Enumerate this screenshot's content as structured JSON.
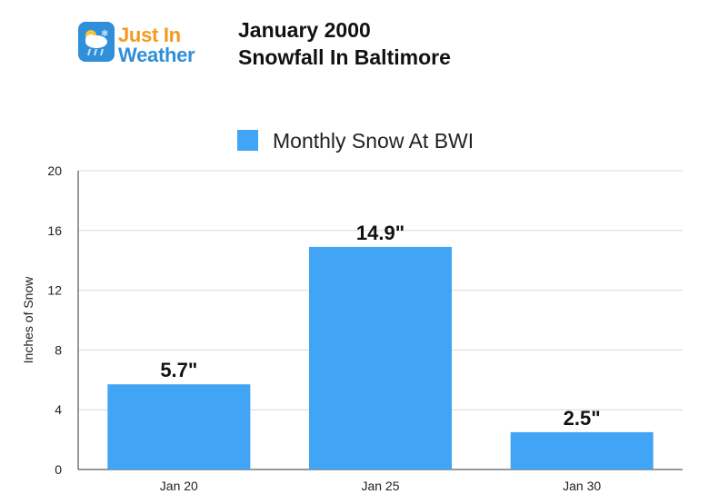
{
  "logo": {
    "line1": "Just In",
    "line2": "Weather"
  },
  "header": {
    "title_line1": "January 2000",
    "title_line2": "Snowfall In Baltimore"
  },
  "chart_data": {
    "type": "bar",
    "categories": [
      "Jan 20",
      "Jan 25",
      "Jan 30"
    ],
    "series": [
      {
        "name": "Monthly Snow At BWI",
        "values": [
          5.7,
          14.9,
          2.5
        ],
        "color": "#42a4f5"
      }
    ],
    "data_labels": [
      "5.7\"",
      "14.9\"",
      "2.5\""
    ],
    "ylabel": "Inches of Snow",
    "ylim": [
      0,
      20
    ],
    "yticks": [
      0,
      4,
      8,
      12,
      16,
      20
    ],
    "grid": true,
    "legend_position": "top"
  }
}
